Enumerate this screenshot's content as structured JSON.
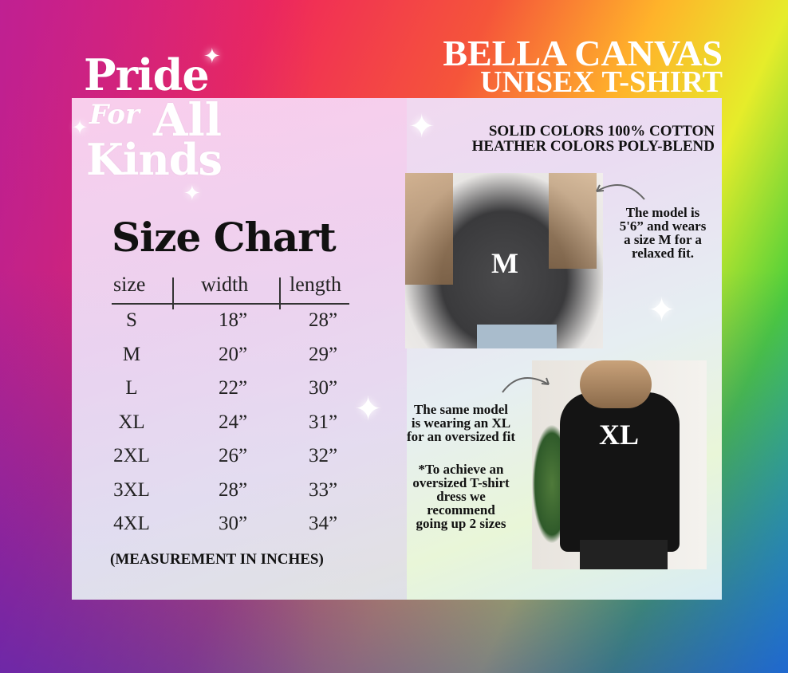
{
  "logo": {
    "line1": "Pride",
    "line2": "For",
    "line3": "All",
    "line4": "Kinds"
  },
  "header": {
    "brand": "BELLA CANVAS",
    "product": "UNISEX T-SHIRT"
  },
  "material": {
    "line1": "SOLID COLORS 100% COTTON",
    "line2": "HEATHER COLORS POLY-BLEND"
  },
  "size_chart": {
    "title": "Size Chart",
    "columns": [
      "size",
      "width",
      "length"
    ],
    "rows": [
      [
        "S",
        "18”",
        "28”"
      ],
      [
        "M",
        "20”",
        "29”"
      ],
      [
        "L",
        "22”",
        "30”"
      ],
      [
        "XL",
        "24”",
        "31”"
      ],
      [
        "2XL",
        "26”",
        "32”"
      ],
      [
        "3XL",
        "28”",
        "33”"
      ],
      [
        "4XL",
        "30”",
        "34”"
      ]
    ],
    "footnote": "(MEASUREMENT IN INCHES)"
  },
  "photos": {
    "m": {
      "label": "M",
      "caption": [
        "The model is",
        "5'6” and wears",
        "a size M for a",
        "relaxed fit."
      ]
    },
    "xl": {
      "label": "XL",
      "caption": [
        "The same model",
        "is wearing an XL",
        "for an oversized fit"
      ],
      "tip": [
        "*To achieve an",
        "oversized T-shirt",
        "dress we",
        "recommend",
        "going up 2 sizes"
      ]
    }
  }
}
